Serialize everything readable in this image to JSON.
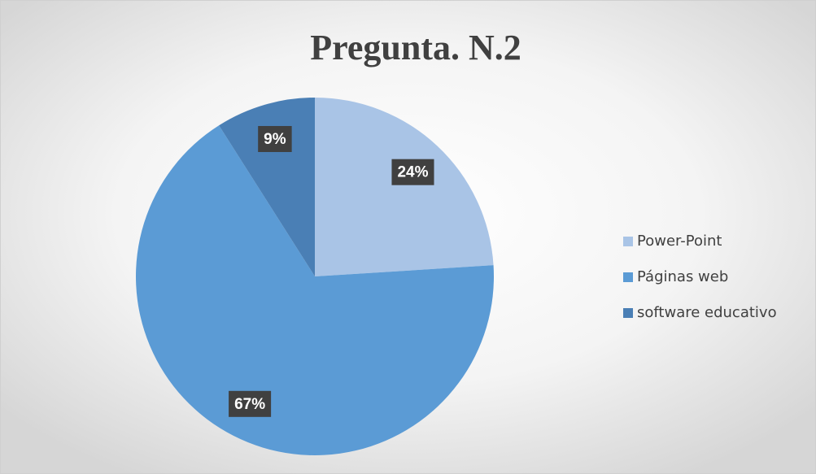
{
  "chart_data": {
    "type": "pie",
    "title": "Pregunta. N.2",
    "categories": [
      "Power-Point",
      "Páginas web",
      "software educativo"
    ],
    "values": [
      24,
      67,
      9
    ],
    "value_labels": [
      "24%",
      "67%",
      "9%"
    ],
    "colors": [
      "#a9c4e6",
      "#5b9bd5",
      "#4a7fb5"
    ],
    "legend": "right"
  }
}
